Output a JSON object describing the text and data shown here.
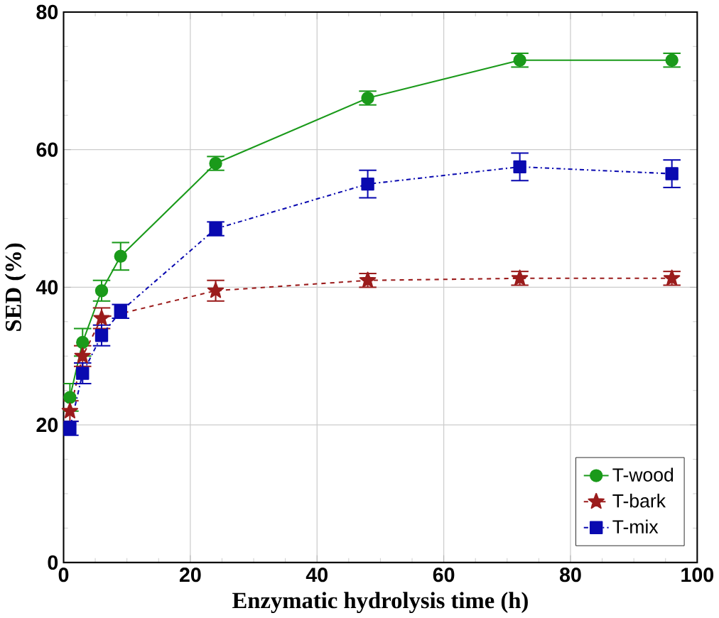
{
  "chart_data": {
    "type": "line",
    "xlabel": "Enzymatic hydrolysis time (h)",
    "ylabel": "SED (%)",
    "xlim": [
      0,
      100
    ],
    "xticks": [
      0,
      20,
      40,
      60,
      80,
      100
    ],
    "ylim": [
      0,
      80
    ],
    "yticks": [
      0,
      20,
      40,
      60,
      80
    ],
    "grid": true,
    "legend": "bottom right",
    "series": [
      {
        "name": "T-wood",
        "color": "#1a9a1a",
        "marker": "circle",
        "line_style": "solid",
        "x": [
          1,
          3,
          6,
          9,
          24,
          48,
          72,
          96
        ],
        "values": [
          24,
          32,
          39.5,
          44.5,
          58,
          67.5,
          73,
          73
        ],
        "errors": [
          2,
          2,
          1.5,
          2,
          1,
          1,
          1,
          1
        ]
      },
      {
        "name": "T-bark",
        "color": "#9b1c1c",
        "marker": "star",
        "line_style": "dashed",
        "x": [
          1,
          3,
          6,
          9,
          24,
          48,
          72,
          96
        ],
        "values": [
          22,
          30,
          35.5,
          null,
          39.5,
          41,
          41.3,
          41.3
        ],
        "errors": [
          1.5,
          1.5,
          1.5,
          null,
          1.5,
          1,
          1,
          1
        ]
      },
      {
        "name": "T-mix",
        "color": "#0a0ab0",
        "marker": "square",
        "line_style": "dashdot",
        "x": [
          1,
          3,
          6,
          9,
          24,
          48,
          72,
          96
        ],
        "values": [
          19.5,
          27.5,
          33,
          36.5,
          48.5,
          55,
          57.5,
          56.5
        ],
        "errors": [
          1,
          1.5,
          1.5,
          1,
          1,
          2,
          2,
          2
        ]
      }
    ]
  }
}
